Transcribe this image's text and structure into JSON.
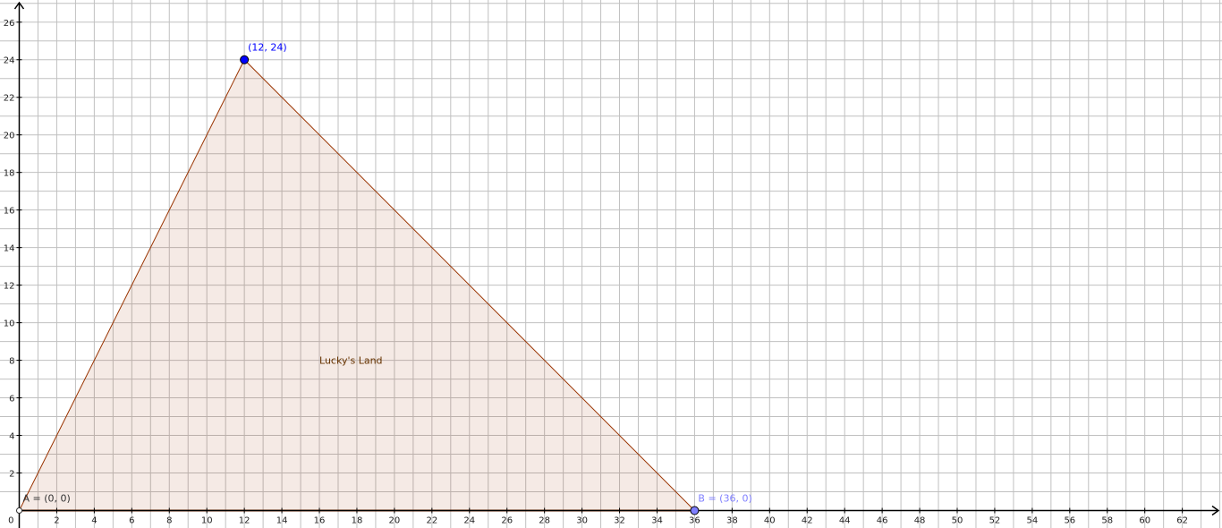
{
  "chart_data": {
    "type": "scatter",
    "title": "",
    "xlabel": "",
    "ylabel": "",
    "origin_label": "0",
    "xlim": [
      0,
      64
    ],
    "ylim": [
      0,
      27
    ],
    "grid": true,
    "x_ticks": [
      2,
      4,
      6,
      8,
      10,
      12,
      14,
      16,
      18,
      20,
      22,
      24,
      26,
      28,
      30,
      32,
      34,
      36,
      38,
      40,
      42,
      44,
      46,
      48,
      50,
      52,
      54,
      56,
      58,
      60,
      62
    ],
    "y_ticks": [
      2,
      4,
      6,
      8,
      10,
      12,
      14,
      16,
      18,
      20,
      22,
      24,
      26
    ],
    "points": [
      {
        "id": "A",
        "label": "A = (0, 0)",
        "x": 0,
        "y": 0,
        "color": "#333333",
        "style": "hollow"
      },
      {
        "id": "C",
        "label": "(12, 24)",
        "x": 12,
        "y": 24,
        "color": "#0000ff",
        "style": "filled"
      },
      {
        "id": "B",
        "label": "B = (36, 0)",
        "x": 36,
        "y": 0,
        "color": "#7f7fff",
        "style": "filled"
      }
    ],
    "polygon": {
      "label": "Lucky's Land",
      "vertices": [
        [
          0,
          0
        ],
        [
          12,
          24
        ],
        [
          36,
          0
        ]
      ],
      "stroke_color": "#993300",
      "fill_color": "#993300",
      "label_color": "#663300"
    },
    "colors": {
      "grid": "#c0c0c0",
      "axis": "#000000"
    }
  }
}
